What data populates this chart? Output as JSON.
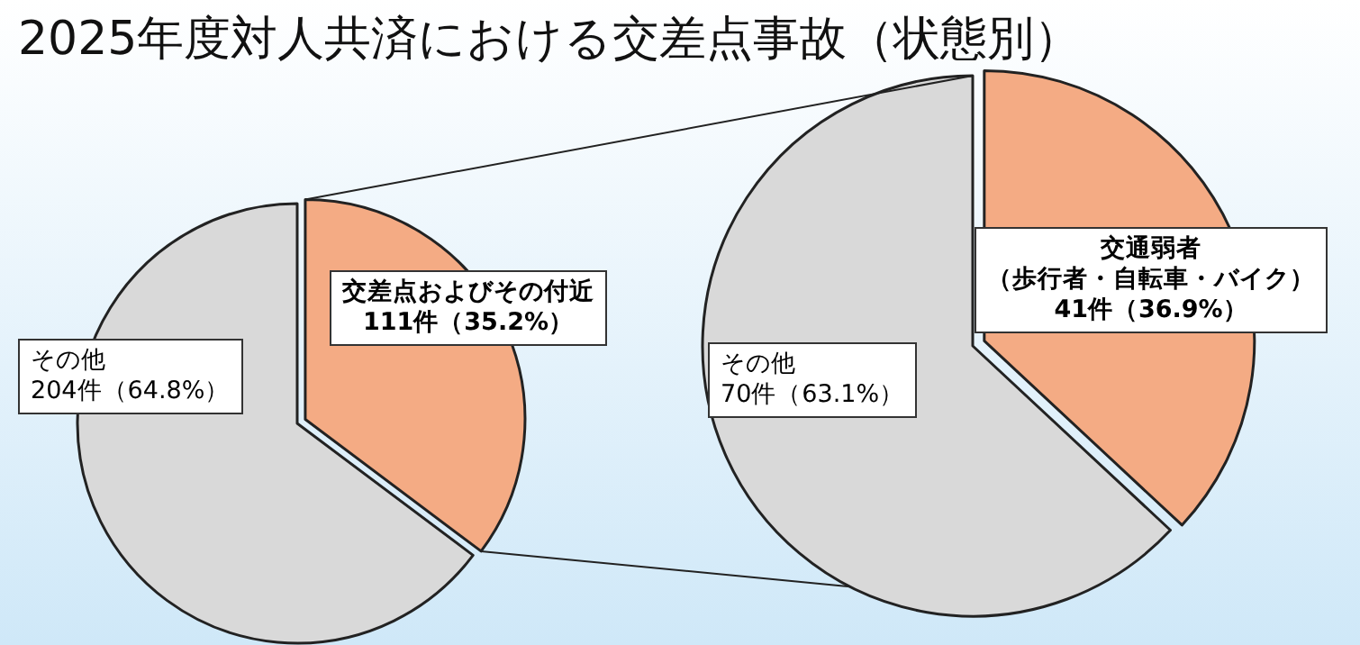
{
  "chart_data": [
    {
      "type": "pie",
      "title": "2025年度対人共済における交差点事故（状態別）",
      "categories": [
        "交差点およびその付近",
        "その他"
      ],
      "values": [
        111,
        204
      ],
      "value_labels": [
        "111件（35.2%）",
        "204件（64.8%）"
      ],
      "colors": [
        "#f4ab84",
        "#d9d9d9"
      ]
    },
    {
      "type": "pie",
      "categories": [
        "交通弱者（歩行者・自転車・バイク）",
        "その他"
      ],
      "values": [
        41,
        70
      ],
      "value_labels": [
        "41件（36.9%）",
        "70件（63.1%）"
      ],
      "colors": [
        "#f4ab84",
        "#d9d9d9"
      ]
    }
  ]
}
